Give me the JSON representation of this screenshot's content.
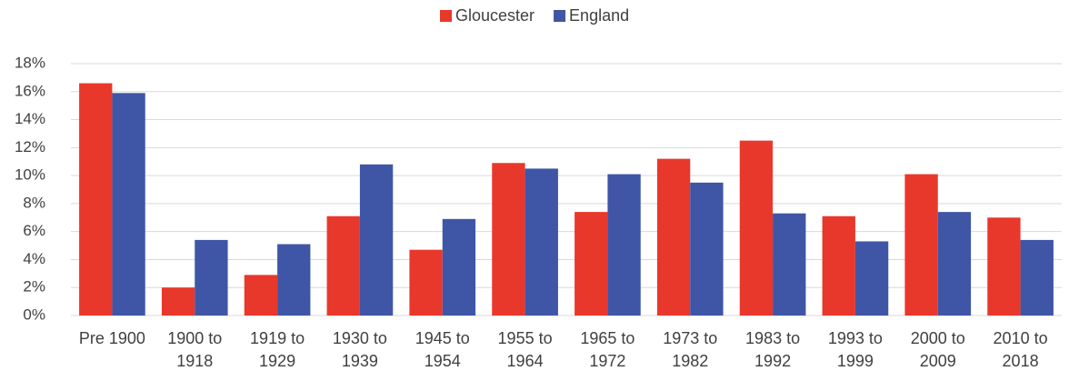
{
  "chart_data": {
    "type": "bar",
    "categories": [
      "Pre 1900",
      "1900 to 1918",
      "1919 to 1929",
      "1930 to 1939",
      "1945 to 1954",
      "1955 to 1964",
      "1965 to 1972",
      "1973 to 1982",
      "1983 to 1992",
      "1993 to 1999",
      "2000 to 2009",
      "2010 to 2018"
    ],
    "series": [
      {
        "name": "Gloucester",
        "color": "#e8382b",
        "values": [
          16.6,
          2.0,
          2.9,
          7.1,
          4.7,
          10.9,
          7.4,
          11.2,
          12.5,
          7.1,
          10.1,
          7.0
        ]
      },
      {
        "name": "England",
        "color": "#3f56a6",
        "values": [
          15.9,
          5.4,
          5.1,
          10.8,
          6.9,
          10.5,
          10.1,
          9.5,
          7.3,
          5.3,
          7.4,
          5.4
        ]
      }
    ],
    "ylim": [
      0,
      18
    ],
    "yticks": [
      {
        "value": 0,
        "label": "0%"
      },
      {
        "value": 2,
        "label": "2%"
      },
      {
        "value": 4,
        "label": "4%"
      },
      {
        "value": 6,
        "label": "6%"
      },
      {
        "value": 8,
        "label": "8%"
      },
      {
        "value": 10,
        "label": "10%"
      },
      {
        "value": 12,
        "label": "12%"
      },
      {
        "value": 14,
        "label": "14%"
      },
      {
        "value": 16,
        "label": "16%"
      },
      {
        "value": 18,
        "label": "18%"
      }
    ],
    "grid": true,
    "legend": "top"
  }
}
